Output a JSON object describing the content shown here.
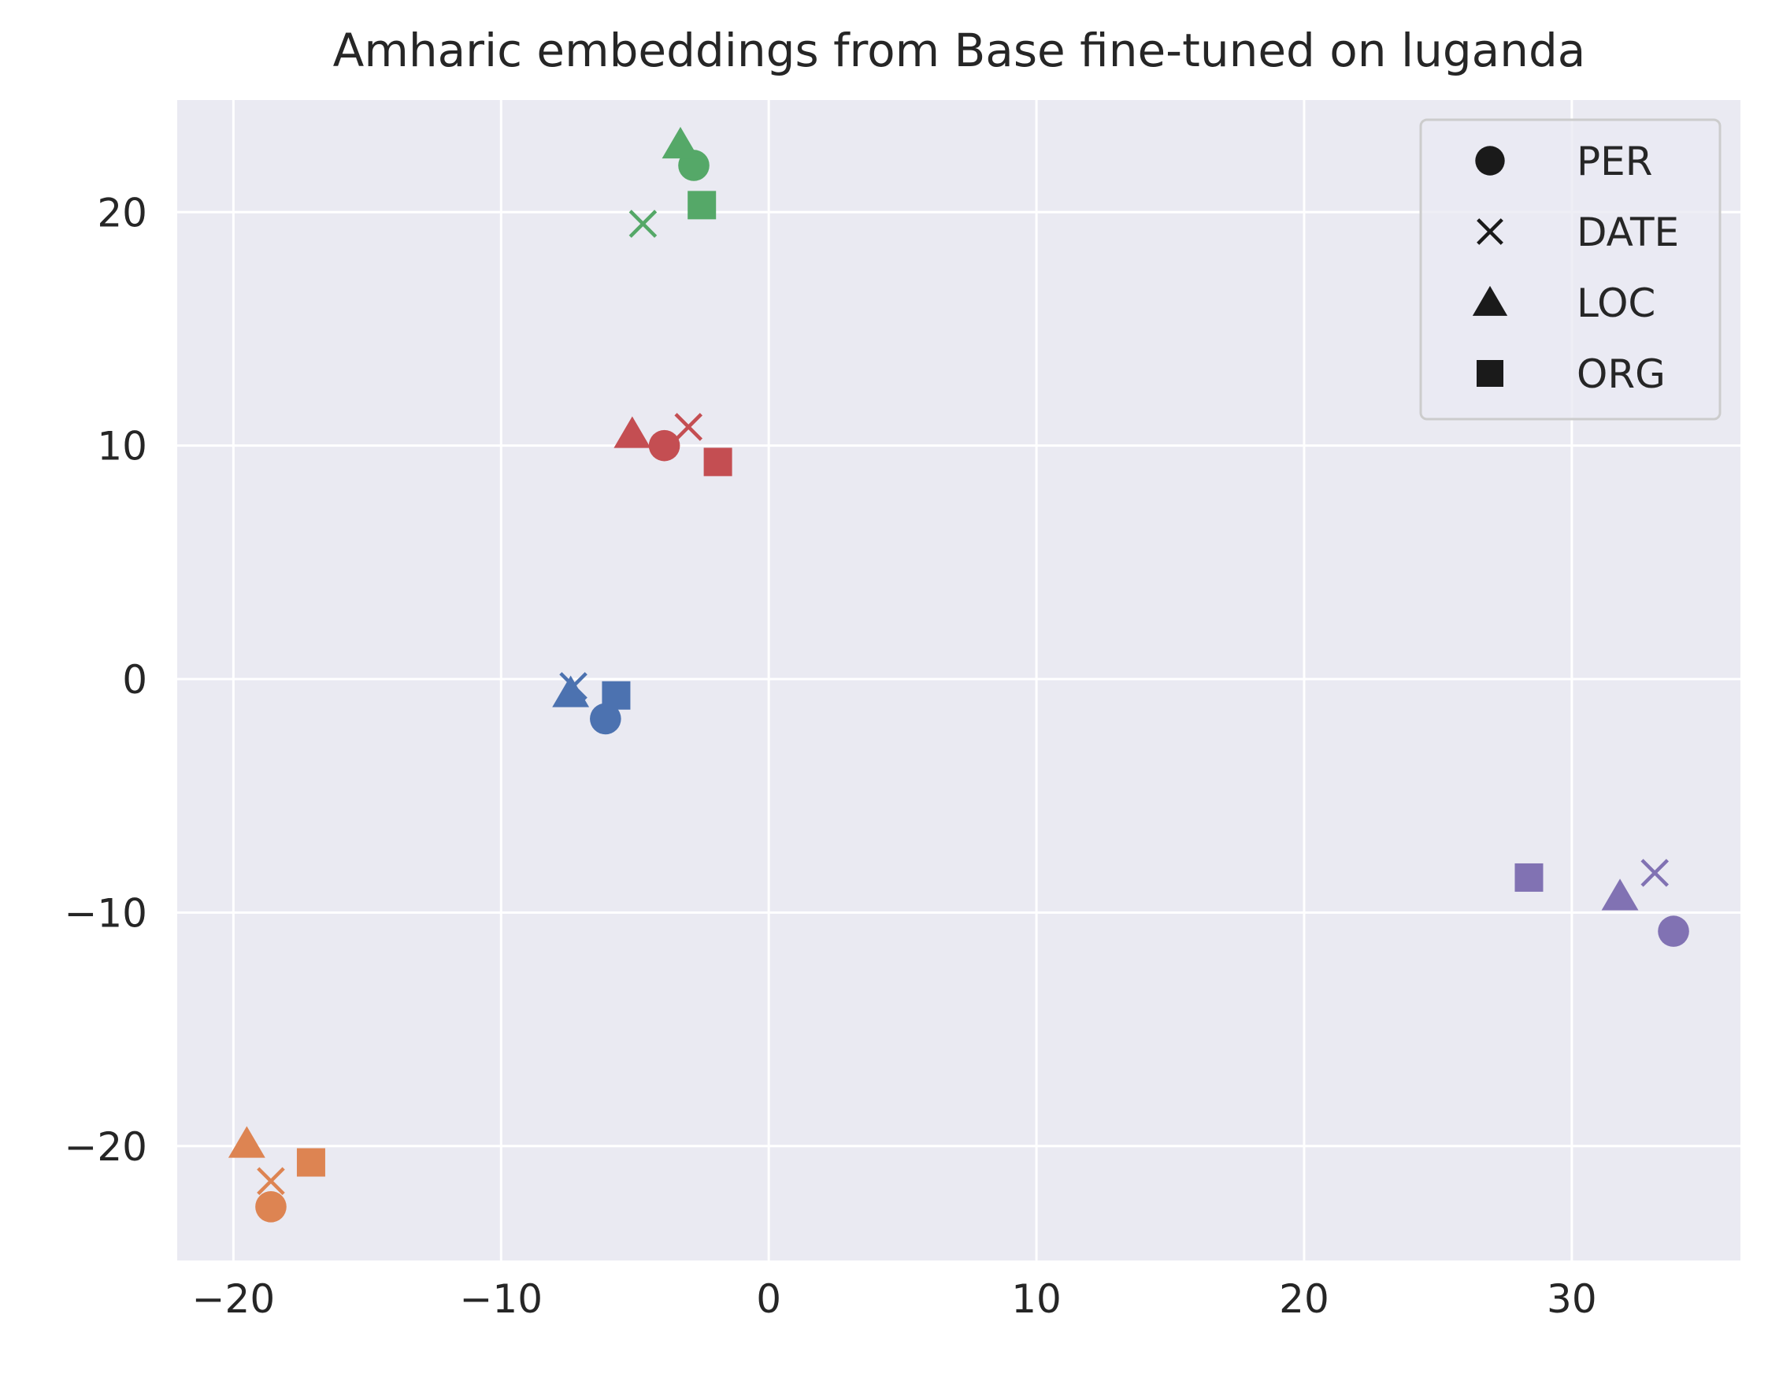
{
  "chart_data": {
    "type": "scatter",
    "title": "Amharic embeddings from Base fine-tuned on luganda",
    "xlabel": "",
    "ylabel": "",
    "xlim": [
      -22.1,
      36.3
    ],
    "ylim": [
      -24.9,
      24.8
    ],
    "xticks": [
      -20,
      -10,
      0,
      10,
      20,
      30
    ],
    "xtick_labels": [
      "−20",
      "−10",
      "0",
      "10",
      "20",
      "30"
    ],
    "yticks": [
      -20,
      -10,
      0,
      10,
      20
    ],
    "ytick_labels": [
      "−20",
      "−10",
      "0",
      "10",
      "20"
    ],
    "grid": true,
    "legend_position": "upper right",
    "legend": [
      {
        "label": "PER",
        "marker": "circle"
      },
      {
        "label": "DATE",
        "marker": "x"
      },
      {
        "label": "LOC",
        "marker": "triangle"
      },
      {
        "label": "ORG",
        "marker": "square"
      }
    ],
    "colors": {
      "green": "#55a868",
      "red": "#c44e52",
      "blue": "#4c72b0",
      "purple": "#8172b3",
      "orange": "#dd8452",
      "background": "#eaeaf2",
      "grid": "#ffffff",
      "legend_marker": "#1a1a1a"
    },
    "points": [
      {
        "x": -2.8,
        "y": 22.0,
        "marker": "circle",
        "color": "green"
      },
      {
        "x": -4.7,
        "y": 19.5,
        "marker": "x",
        "color": "green"
      },
      {
        "x": -3.3,
        "y": 22.9,
        "marker": "triangle",
        "color": "green"
      },
      {
        "x": -2.5,
        "y": 20.3,
        "marker": "square",
        "color": "green"
      },
      {
        "x": -3.9,
        "y": 10.0,
        "marker": "circle",
        "color": "red"
      },
      {
        "x": -3.0,
        "y": 10.8,
        "marker": "x",
        "color": "red"
      },
      {
        "x": -5.1,
        "y": 10.5,
        "marker": "triangle",
        "color": "red"
      },
      {
        "x": -1.9,
        "y": 9.3,
        "marker": "square",
        "color": "red"
      },
      {
        "x": -6.1,
        "y": -1.7,
        "marker": "circle",
        "color": "blue"
      },
      {
        "x": -7.3,
        "y": -0.3,
        "marker": "x",
        "color": "blue"
      },
      {
        "x": -7.4,
        "y": -0.6,
        "marker": "triangle",
        "color": "blue"
      },
      {
        "x": -5.7,
        "y": -0.7,
        "marker": "square",
        "color": "blue"
      },
      {
        "x": 33.8,
        "y": -10.8,
        "marker": "circle",
        "color": "purple"
      },
      {
        "x": 33.1,
        "y": -8.3,
        "marker": "x",
        "color": "purple"
      },
      {
        "x": 31.8,
        "y": -9.3,
        "marker": "triangle",
        "color": "purple"
      },
      {
        "x": 28.4,
        "y": -8.5,
        "marker": "square",
        "color": "purple"
      },
      {
        "x": -18.6,
        "y": -22.6,
        "marker": "circle",
        "color": "orange"
      },
      {
        "x": -18.6,
        "y": -21.5,
        "marker": "x",
        "color": "orange"
      },
      {
        "x": -19.5,
        "y": -19.9,
        "marker": "triangle",
        "color": "orange"
      },
      {
        "x": -17.1,
        "y": -20.7,
        "marker": "square",
        "color": "orange"
      }
    ]
  }
}
